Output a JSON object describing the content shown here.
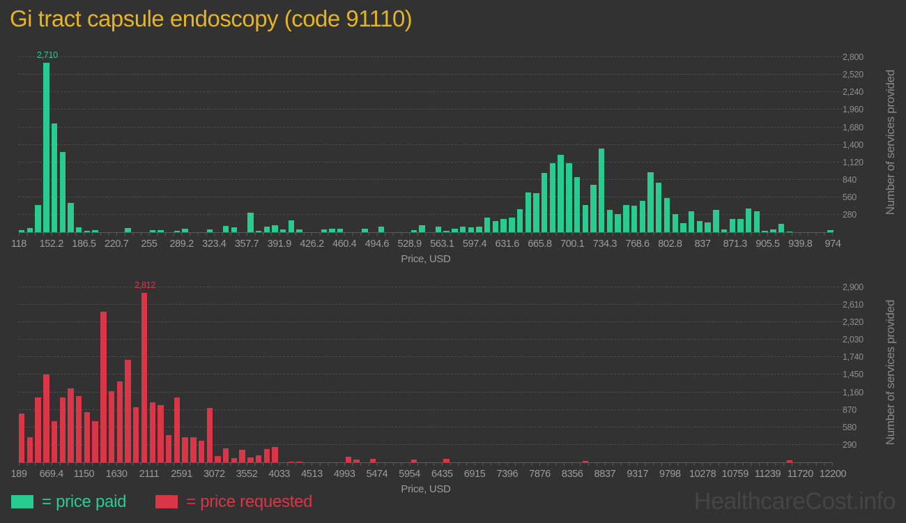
{
  "title": "Gi tract capsule endoscopy (code 91110)",
  "watermark": "HealthcareCost.info",
  "colors": {
    "background": "#323232",
    "title": "#e6b41e",
    "paid": "#29cb93",
    "requested": "#d93747",
    "axis_text": "#9c9c9c",
    "gridline": "#4d4d4d"
  },
  "legend": {
    "paid_label": "= price paid",
    "requested_label": "= price requested"
  },
  "chart_data": [
    {
      "type": "bar",
      "series_name": "price paid",
      "color": "#29cb93",
      "xlabel": "Price, USD",
      "ylabel": "Number of services provided",
      "x_range": [
        118,
        974
      ],
      "ylim": [
        0,
        2880
      ],
      "grid": true,
      "legend_position": "bottom-left",
      "x_ticks": [
        "118",
        "152.2",
        "186.5",
        "220.7",
        "255",
        "289.2",
        "323.4",
        "357.7",
        "391.9",
        "426.2",
        "460.4",
        "494.6",
        "528.9",
        "563.1",
        "597.4",
        "631.6",
        "665.8",
        "700.1",
        "734.3",
        "768.6",
        "802.8",
        "837",
        "871.3",
        "905.5",
        "939.8",
        "974"
      ],
      "y_ticks": [
        {
          "value": 280,
          "label": "280"
        },
        {
          "value": 560,
          "label": "560"
        },
        {
          "value": 840,
          "label": "840"
        },
        {
          "value": 1120,
          "label": "1,120"
        },
        {
          "value": 1400,
          "label": "1,400"
        },
        {
          "value": 1680,
          "label": "1,680"
        },
        {
          "value": 1960,
          "label": "1,960"
        },
        {
          "value": 2240,
          "label": "2,240"
        },
        {
          "value": 2520,
          "label": "2,520"
        },
        {
          "value": 2800,
          "label": "2,800"
        }
      ],
      "peak": {
        "index": 3,
        "value": 2710,
        "label": "2,710"
      },
      "values": [
        30,
        65,
        435,
        2710,
        1740,
        1280,
        465,
        75,
        20,
        35,
        0,
        0,
        0,
        65,
        0,
        0,
        30,
        35,
        0,
        20,
        60,
        0,
        0,
        45,
        0,
        105,
        75,
        0,
        310,
        20,
        90,
        110,
        50,
        185,
        45,
        0,
        0,
        50,
        60,
        60,
        0,
        0,
        60,
        0,
        90,
        0,
        0,
        0,
        30,
        110,
        0,
        90,
        20,
        55,
        85,
        75,
        95,
        230,
        175,
        215,
        240,
        365,
        640,
        625,
        945,
        1105,
        1240,
        1105,
        880,
        435,
        760,
        1340,
        360,
        285,
        440,
        420,
        505,
        960,
        790,
        545,
        285,
        140,
        340,
        180,
        160,
        360,
        40,
        210,
        215,
        385,
        330,
        25,
        40,
        130,
        15,
        0,
        0,
        0,
        0,
        35
      ]
    },
    {
      "type": "bar",
      "series_name": "price requested",
      "color": "#d93747",
      "xlabel": "Price, USD",
      "ylabel": "Number of services provided",
      "x_range": [
        189,
        12200
      ],
      "ylim": [
        0,
        2980
      ],
      "grid": true,
      "legend_position": "bottom-left",
      "x_ticks": [
        "189",
        "669.4",
        "1150",
        "1630",
        "2111",
        "2591",
        "3072",
        "3552",
        "4033",
        "4513",
        "4993",
        "5474",
        "5954",
        "6435",
        "6915",
        "7396",
        "7876",
        "8356",
        "8837",
        "9317",
        "9798",
        "10278",
        "10759",
        "11239",
        "11720",
        "12200"
      ],
      "y_ticks": [
        {
          "value": 290,
          "label": "290"
        },
        {
          "value": 580,
          "label": "580"
        },
        {
          "value": 870,
          "label": "870"
        },
        {
          "value": 1160,
          "label": "1,160"
        },
        {
          "value": 1450,
          "label": "1,450"
        },
        {
          "value": 1740,
          "label": "1,740"
        },
        {
          "value": 2030,
          "label": "2,030"
        },
        {
          "value": 2320,
          "label": "2,320"
        },
        {
          "value": 2610,
          "label": "2,610"
        },
        {
          "value": 2900,
          "label": "2,900"
        }
      ],
      "peak": {
        "index": 15,
        "value": 2812,
        "label": "2,812"
      },
      "values": [
        810,
        420,
        1070,
        1450,
        680,
        1080,
        1230,
        1100,
        830,
        680,
        2500,
        1180,
        1340,
        1700,
        910,
        2812,
        990,
        950,
        450,
        1080,
        420,
        420,
        360,
        900,
        100,
        230,
        65,
        210,
        85,
        115,
        220,
        260,
        0,
        15,
        15,
        0,
        0,
        0,
        0,
        0,
        95,
        45,
        0,
        60,
        0,
        0,
        0,
        0,
        50,
        0,
        0,
        0,
        60,
        0,
        0,
        0,
        0,
        0,
        0,
        0,
        0,
        0,
        0,
        0,
        0,
        0,
        0,
        0,
        0,
        25,
        0,
        0,
        0,
        0,
        0,
        0,
        0,
        0,
        0,
        0,
        0,
        0,
        0,
        0,
        0,
        0,
        0,
        0,
        0,
        0,
        0,
        0,
        0,
        0,
        30,
        0,
        0,
        0,
        0,
        0
      ]
    }
  ]
}
